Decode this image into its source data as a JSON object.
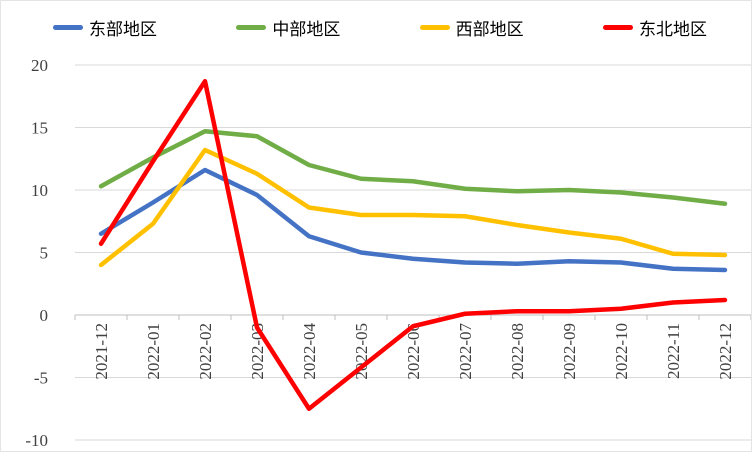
{
  "chart_data": {
    "type": "line",
    "title": "",
    "categories": [
      "2021-12",
      "2022-01",
      "2022-02",
      "2022-03",
      "2022-04",
      "2022-05",
      "2022-06",
      "2022-07",
      "2022-08",
      "2022-09",
      "2022-10",
      "2022-11",
      "2022-12"
    ],
    "series": [
      {
        "name": "东部地区",
        "color": "#4472C4",
        "values": [
          6.5,
          9.0,
          11.6,
          9.6,
          6.3,
          5.0,
          4.5,
          4.2,
          4.1,
          4.3,
          4.2,
          3.7,
          3.6
        ]
      },
      {
        "name": "中部地区",
        "color": "#70AD47",
        "values": [
          10.3,
          12.6,
          14.7,
          14.3,
          12.0,
          10.9,
          10.7,
          10.1,
          9.9,
          10.0,
          9.8,
          9.4,
          8.9
        ]
      },
      {
        "name": "西部地区",
        "color": "#FFC000",
        "values": [
          4.0,
          7.3,
          13.2,
          11.3,
          8.6,
          8.0,
          8.0,
          7.9,
          7.2,
          6.6,
          6.1,
          4.9,
          4.8
        ]
      },
      {
        "name": "东北地区",
        "color": "#FF0000",
        "values": [
          5.7,
          12.3,
          18.7,
          -1.0,
          -7.5,
          -4.2,
          -0.9,
          0.1,
          0.3,
          0.3,
          0.5,
          1.0,
          1.2
        ]
      }
    ],
    "y_axis": {
      "min": -10,
      "max": 20,
      "step": 5,
      "tick_labels": [
        "20",
        "15",
        "10",
        "5",
        "0",
        "-5",
        "-10"
      ],
      "tick_values": [
        20,
        15,
        10,
        5,
        0,
        -5,
        -10
      ]
    },
    "x_axis": {
      "label_rotation": -90,
      "tick_marks": "between-categories"
    },
    "legend": {
      "position": "top",
      "labels": [
        "东部地区",
        "中部地区",
        "西部地区",
        "东北地区"
      ]
    },
    "grid": true
  },
  "colors": {
    "background": "#FFFFFF",
    "gridline": "#D9D9D9",
    "axis_line": "#BFBFBF",
    "axis_text": "#404040",
    "series_east": "#4472C4",
    "series_central": "#70AD47",
    "series_west": "#FFC000",
    "series_northeast": "#FF0000"
  }
}
